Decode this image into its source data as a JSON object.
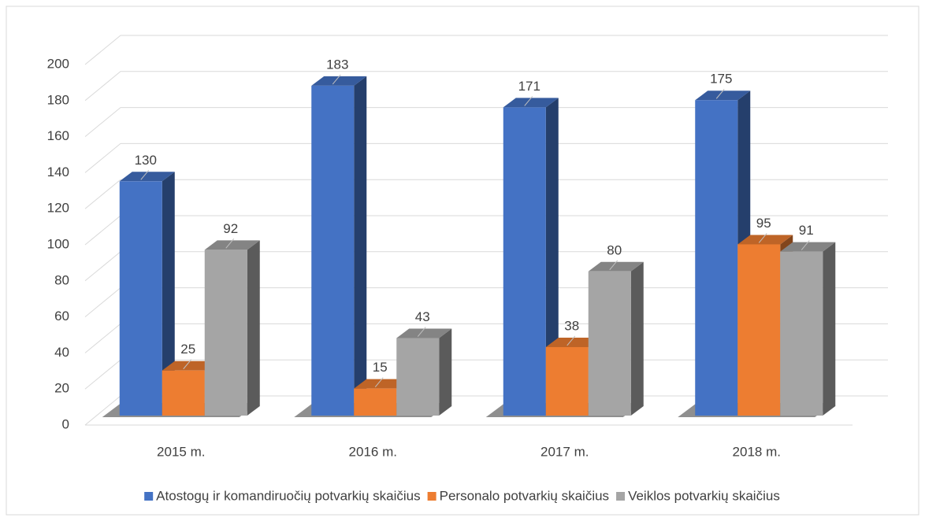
{
  "chart_data": {
    "type": "bar3d",
    "categories": [
      "2015 m.",
      "2016 m.",
      "2017 m.",
      "2018 m."
    ],
    "series": [
      {
        "name": "Atostogų ir komandiruočių potvarkių skaičius",
        "color": "#4472c4",
        "values": [
          130,
          183,
          171,
          175
        ]
      },
      {
        "name": "Personalo potvarkių skaičius",
        "color": "#ed7d31",
        "values": [
          25,
          15,
          38,
          95
        ]
      },
      {
        "name": "Veiklos potvarkių skaičius",
        "color": "#a5a5a5",
        "values": [
          92,
          43,
          80,
          91
        ]
      }
    ],
    "ylim": [
      0,
      200
    ],
    "yticks": [
      0,
      20,
      40,
      60,
      80,
      100,
      120,
      140,
      160,
      180,
      200
    ],
    "grid": true,
    "legend": "bottom",
    "data_labels": true
  }
}
